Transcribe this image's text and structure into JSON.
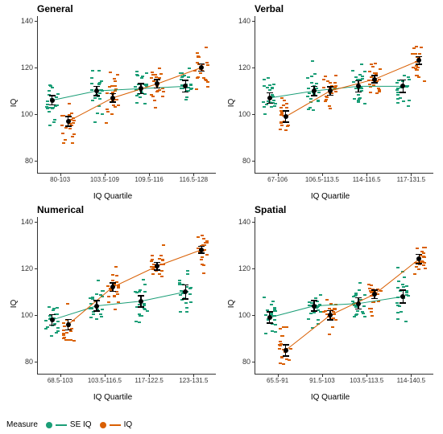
{
  "colors": {
    "se": "#1b9e77",
    "iq": "#d95f02",
    "axis": "#333333",
    "bg": "#ffffff",
    "mean": "#000000"
  },
  "legend": {
    "title": "Measure",
    "items": [
      {
        "key": "se",
        "label": "SE IQ"
      },
      {
        "key": "iq",
        "label": "IQ"
      }
    ]
  },
  "jitter": {
    "xspread": 0.045,
    "points_per_group": 22,
    "value_sd": 9
  },
  "axis": {
    "ylabel": "IQ",
    "xlabel": "IQ Quartile",
    "ylim": [
      75,
      142
    ],
    "yticks": [
      80,
      100,
      120,
      140
    ],
    "tick_fontsize": 9,
    "label_fontsize": 10,
    "title_fontsize": 12
  },
  "panels": [
    {
      "title": "General",
      "xcats": [
        "80-103",
        "103.5-109",
        "109.5-116",
        "116.5-128"
      ],
      "series": {
        "se": {
          "means": [
            106,
            110,
            111,
            112
          ],
          "err": [
            2,
            2,
            2.2,
            2.5
          ]
        },
        "iq": {
          "means": [
            97,
            107,
            113,
            120
          ],
          "err": [
            2,
            1.8,
            1.8,
            1.6
          ]
        }
      }
    },
    {
      "title": "Verbal",
      "xcats": [
        "67-106",
        "106.5-113.5",
        "114-116.5",
        "117-131.5"
      ],
      "series": {
        "se": {
          "means": [
            107,
            110,
            112,
            112
          ],
          "err": [
            2.2,
            2,
            2.4,
            2.6
          ]
        },
        "iq": {
          "means": [
            99,
            110,
            115,
            123
          ],
          "err": [
            2.4,
            1.8,
            1.6,
            1.6
          ]
        }
      }
    },
    {
      "title": "Numerical",
      "xcats": [
        "68.5-103",
        "103.5-116.5",
        "117-122.5",
        "123-131.5"
      ],
      "series": {
        "se": {
          "means": [
            98,
            104,
            106,
            110
          ],
          "err": [
            2.2,
            2.2,
            2.4,
            3
          ]
        },
        "iq": {
          "means": [
            96,
            112,
            121,
            128
          ],
          "err": [
            2.2,
            1.8,
            1.6,
            1.4
          ]
        }
      }
    },
    {
      "title": "Spatial",
      "xcats": [
        "65.5-91",
        "91.5-103",
        "103.5-113.5",
        "114-140.5"
      ],
      "series": {
        "se": {
          "means": [
            99,
            104,
            105,
            108
          ],
          "err": [
            2.4,
            2.2,
            2.4,
            2.8
          ]
        },
        "iq": {
          "means": [
            85,
            100,
            109,
            124
          ],
          "err": [
            2.4,
            2,
            1.8,
            2
          ]
        }
      }
    }
  ]
}
